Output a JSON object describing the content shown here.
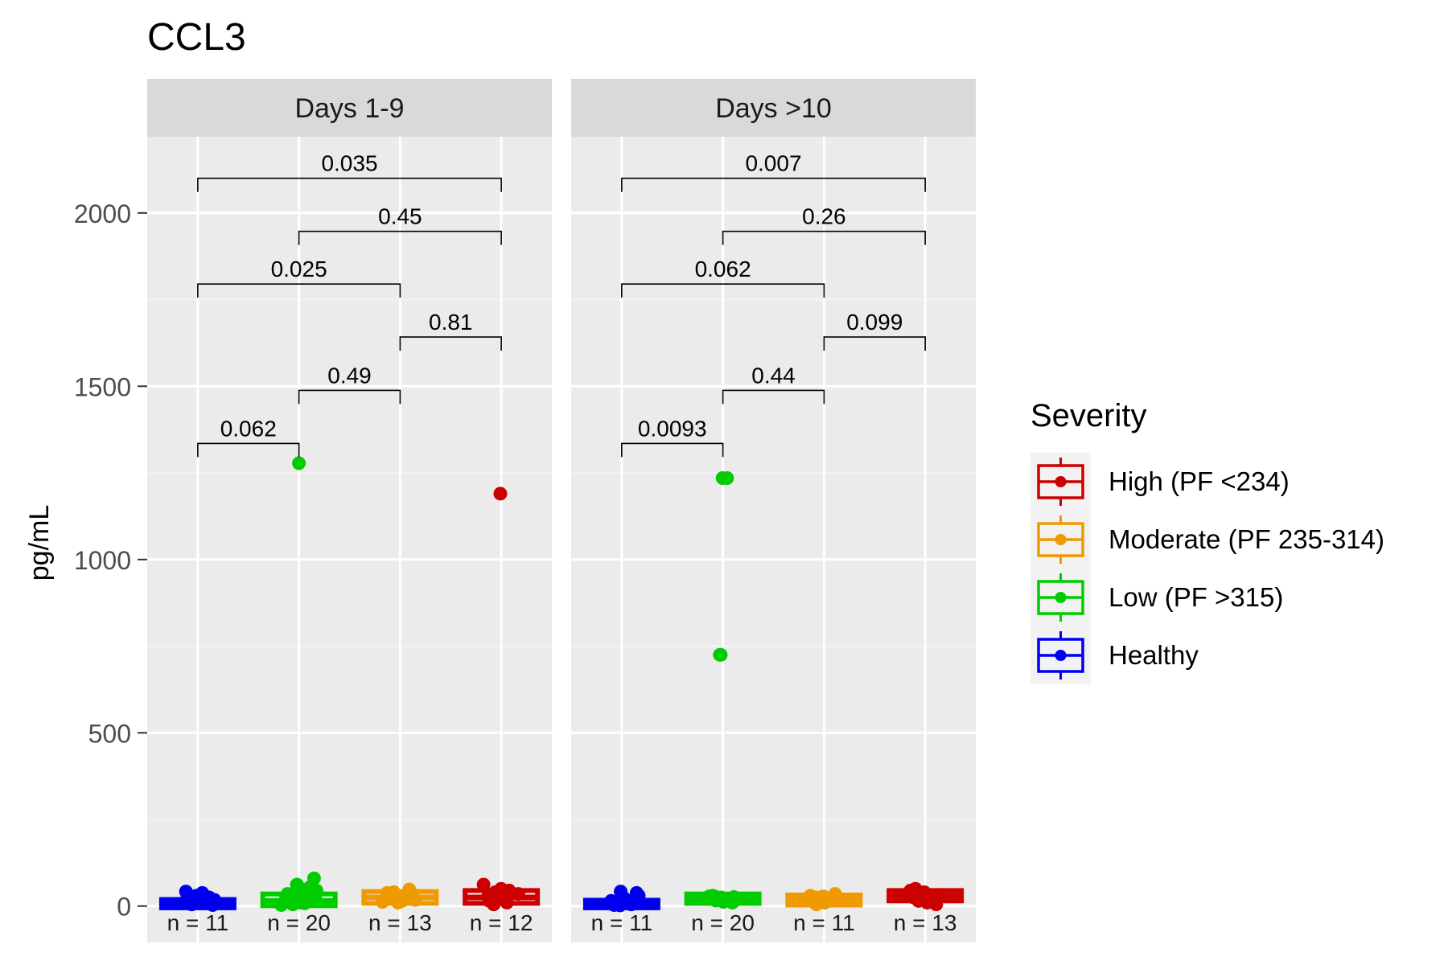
{
  "chart_data": {
    "type": "box",
    "title": "CCL3",
    "ylabel": "pg/mL",
    "xlabel": "",
    "ylim": [
      -105,
      2220
    ],
    "yticks": [
      0,
      500,
      1000,
      1500,
      2000
    ],
    "legend": {
      "title": "Severity",
      "position": "right",
      "entries": [
        {
          "label": "High (PF <234)",
          "color": "#CC0000"
        },
        {
          "label": "Moderate (PF 235-314)",
          "color": "#EE9A00"
        },
        {
          "label": "Low (PF >315)",
          "color": "#00CC00"
        },
        {
          "label": "Healthy",
          "color": "#0000EE"
        }
      ]
    },
    "colors": {
      "Healthy": "#0000EE",
      "Low": "#00CC00",
      "Moderate": "#EE9A00",
      "High": "#CC0000"
    },
    "categories": [
      "Healthy",
      "Low",
      "Moderate",
      "High"
    ],
    "panels": [
      {
        "strip": "Days 1-9",
        "groups": [
          {
            "group": "Healthy",
            "n_label": "n = 11",
            "q1": 2,
            "median": 7,
            "q3": 12,
            "points": [
              3,
              8,
              15,
              22,
              30,
              38,
              42,
              5,
              12,
              18,
              25
            ]
          },
          {
            "group": "Low",
            "n_label": "n = 20",
            "q1": 8,
            "median": 15,
            "q3": 28,
            "points": [
              5,
              10,
              18,
              25,
              35,
              45,
              55,
              62,
              80,
              12,
              20,
              30,
              40,
              50,
              8,
              15,
              22,
              28,
              1278,
              3
            ]
          },
          {
            "group": "Moderate",
            "n_label": "n = 13",
            "q1": 15,
            "median": 25,
            "q3": 35,
            "points": [
              10,
              18,
              25,
              32,
              40,
              48,
              15,
              22,
              30,
              38,
              20,
              28,
              12
            ]
          },
          {
            "group": "High",
            "n_label": "n = 12",
            "q1": 15,
            "median": 25,
            "q3": 38,
            "points": [
              10,
              20,
              30,
              40,
              50,
              62,
              15,
              25,
              35,
              45,
              5,
              1190
            ]
          }
        ],
        "comparisons": [
          {
            "from": "Healthy",
            "to": "High",
            "label": "0.035",
            "y": 2100
          },
          {
            "from": "Low",
            "to": "High",
            "label": "0.45",
            "y": 1947
          },
          {
            "from": "Healthy",
            "to": "Moderate",
            "label": "0.025",
            "y": 1795
          },
          {
            "from": "Moderate",
            "to": "High",
            "label": "0.81",
            "y": 1642
          },
          {
            "from": "Low",
            "to": "Moderate",
            "label": "0.49",
            "y": 1488
          },
          {
            "from": "Healthy",
            "to": "Low",
            "label": "0.062",
            "y": 1335
          }
        ]
      },
      {
        "strip": "Days >10",
        "groups": [
          {
            "group": "Healthy",
            "n_label": "n = 11",
            "q1": 2,
            "median": 6,
            "q3": 10,
            "points": [
              3,
              8,
              15,
              22,
              30,
              38,
              42,
              5,
              12,
              18,
              2
            ]
          },
          {
            "group": "Low",
            "n_label": "n = 20",
            "q1": 15,
            "median": 20,
            "q3": 28,
            "points": [
              10,
              15,
              20,
              25,
              30,
              18,
              22,
              27,
              12,
              24,
              28,
              16,
              21,
              26,
              19,
              23,
              1235,
              1235,
              725,
              725
            ]
          },
          {
            "group": "Moderate",
            "n_label": "n = 11",
            "q1": 10,
            "median": 18,
            "q3": 25,
            "points": [
              5,
              10,
              15,
              20,
              25,
              30,
              35,
              12,
              18,
              22,
              28
            ]
          },
          {
            "group": "High",
            "n_label": "n = 13",
            "q1": 22,
            "median": 30,
            "q3": 38,
            "points": [
              10,
              20,
              30,
              40,
              50,
              15,
              25,
              35,
              45,
              5,
              28,
              32,
              38
            ]
          }
        ],
        "comparisons": [
          {
            "from": "Healthy",
            "to": "High",
            "label": "0.007",
            "y": 2100
          },
          {
            "from": "Low",
            "to": "High",
            "label": "0.26",
            "y": 1947
          },
          {
            "from": "Healthy",
            "to": "Moderate",
            "label": "0.062",
            "y": 1795
          },
          {
            "from": "Moderate",
            "to": "High",
            "label": "0.099",
            "y": 1642
          },
          {
            "from": "Low",
            "to": "Moderate",
            "label": "0.44",
            "y": 1488
          },
          {
            "from": "Healthy",
            "to": "Low",
            "label": "0.0093",
            "y": 1335
          }
        ]
      }
    ]
  }
}
